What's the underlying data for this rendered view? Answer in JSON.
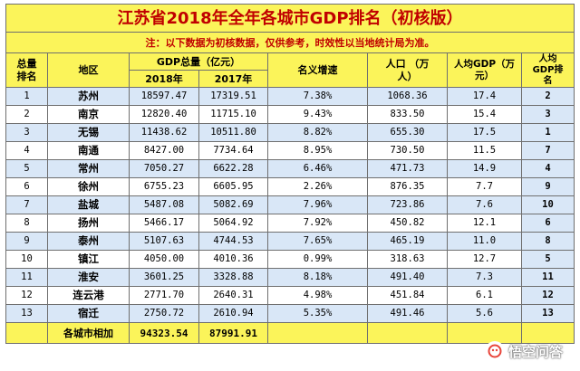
{
  "title": "江苏省2018年全年各城市GDP排名（初核版）",
  "note": "注：以下数据为初核数据，仅供参考，时效性以当地统计局为准。",
  "headers": {
    "rank": "总量\n排名",
    "region": "地区",
    "gdp_total": "GDP总量（亿元）",
    "y2018": "2018年",
    "y2017": "2017年",
    "growth": "名义增速",
    "population": "人口 （万\n人）",
    "per_capita": "人均GDP（万元）",
    "per_capita_rank": "人均\nGDP排\n名"
  },
  "rows": [
    {
      "rank": "1",
      "city": "苏州",
      "gdp2018": "18597.47",
      "gdp2017": "17319.51",
      "growth": "7.38%",
      "pop": "1068.36",
      "pc": "17.4",
      "pcrank": "2"
    },
    {
      "rank": "2",
      "city": "南京",
      "gdp2018": "12820.40",
      "gdp2017": "11715.10",
      "growth": "9.43%",
      "pop": "833.50",
      "pc": "15.4",
      "pcrank": "3"
    },
    {
      "rank": "3",
      "city": "无锡",
      "gdp2018": "11438.62",
      "gdp2017": "10511.80",
      "growth": "8.82%",
      "pop": "655.30",
      "pc": "17.5",
      "pcrank": "1"
    },
    {
      "rank": "4",
      "city": "南通",
      "gdp2018": "8427.00",
      "gdp2017": "7734.64",
      "growth": "8.95%",
      "pop": "730.50",
      "pc": "11.5",
      "pcrank": "7"
    },
    {
      "rank": "5",
      "city": "常州",
      "gdp2018": "7050.27",
      "gdp2017": "6622.28",
      "growth": "6.46%",
      "pop": "471.73",
      "pc": "14.9",
      "pcrank": "4"
    },
    {
      "rank": "6",
      "city": "徐州",
      "gdp2018": "6755.23",
      "gdp2017": "6605.95",
      "growth": "2.26%",
      "pop": "876.35",
      "pc": "7.7",
      "pcrank": "9"
    },
    {
      "rank": "7",
      "city": "盐城",
      "gdp2018": "5487.08",
      "gdp2017": "5082.69",
      "growth": "7.96%",
      "pop": "723.86",
      "pc": "7.6",
      "pcrank": "10"
    },
    {
      "rank": "8",
      "city": "扬州",
      "gdp2018": "5466.17",
      "gdp2017": "5064.92",
      "growth": "7.92%",
      "pop": "450.82",
      "pc": "12.1",
      "pcrank": "6"
    },
    {
      "rank": "9",
      "city": "泰州",
      "gdp2018": "5107.63",
      "gdp2017": "4744.53",
      "growth": "7.65%",
      "pop": "465.19",
      "pc": "11.0",
      "pcrank": "8"
    },
    {
      "rank": "10",
      "city": "镇江",
      "gdp2018": "4050.00",
      "gdp2017": "4010.36",
      "growth": "0.99%",
      "pop": "318.63",
      "pc": "12.7",
      "pcrank": "5"
    },
    {
      "rank": "11",
      "city": "淮安",
      "gdp2018": "3601.25",
      "gdp2017": "3328.88",
      "growth": "8.18%",
      "pop": "491.40",
      "pc": "7.3",
      "pcrank": "11"
    },
    {
      "rank": "12",
      "city": "连云港",
      "gdp2018": "2771.70",
      "gdp2017": "2640.31",
      "growth": "4.98%",
      "pop": "451.84",
      "pc": "6.1",
      "pcrank": "12"
    },
    {
      "rank": "13",
      "city": "宿迁",
      "gdp2018": "2750.72",
      "gdp2017": "2610.94",
      "growth": "5.35%",
      "pop": "491.46",
      "pc": "5.6",
      "pcrank": "13"
    }
  ],
  "total": {
    "label": "各城市相加",
    "gdp2018": "94323.54",
    "gdp2017": "87991.91"
  },
  "watermark": {
    "text": "悟空问答",
    "icon": "wukong-logo-icon"
  },
  "colors": {
    "header_yellow": "#fbf45a",
    "title_red": "#c00000",
    "row_blue": "#d9e7f7",
    "border": "#6f6f6f"
  }
}
